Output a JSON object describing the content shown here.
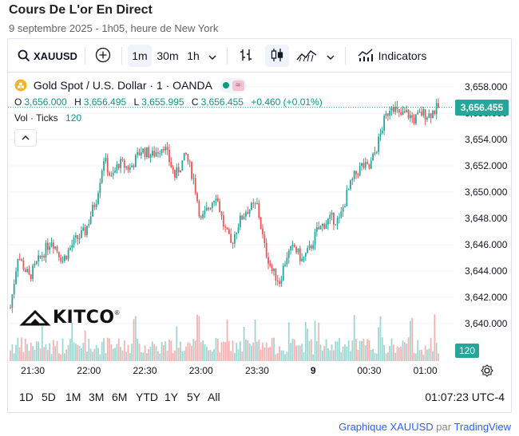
{
  "header": {
    "title": "Cours De L'or En Direct",
    "subtitle": "9 septembre 2025 - 1h05, heure de New York"
  },
  "toolbar": {
    "symbol": "XAUUSD",
    "intervals": [
      "1m",
      "30m",
      "1h"
    ],
    "active_interval": "1m",
    "indicators_label": "Indicators"
  },
  "legend": {
    "instrument": "Gold Spot / U.S. Dollar · 1 · OANDA",
    "ohlc": {
      "o_label": "O",
      "o_value": "3,656.000",
      "h_label": "H",
      "h_value": "3,656.495",
      "l_label": "L",
      "l_value": "3,655.995",
      "c_label": "C",
      "c_value": "3,656.455",
      "change": "+0.460 (+0.01%)"
    },
    "volume_label": "Vol · Ticks",
    "volume_value": "120"
  },
  "logo_text": "KITCO",
  "price_axis": {
    "ticks": [
      "3,658.000",
      "3,656.000",
      "3,654.000",
      "3,652.000",
      "3,650.000",
      "3,648.000",
      "3,646.000",
      "3,644.000",
      "3,642.000",
      "3,640.000"
    ],
    "last_price": "3,656.455",
    "last_volume": "120"
  },
  "time_axis": {
    "ticks": [
      "21:30",
      "22:00",
      "22:30",
      "23:00",
      "23:30",
      "9",
      "00:30",
      "01:00"
    ]
  },
  "range_bar": {
    "ranges": [
      "1D",
      "5D",
      "1M",
      "3M",
      "6M",
      "YTD",
      "1Y",
      "5Y",
      "All"
    ],
    "clock": "01:07:23",
    "timezone": "UTC-4"
  },
  "footer": {
    "link_text": "Graphique XAUUSD",
    "by_text": "par",
    "provider": "TradingView"
  },
  "colors": {
    "up": "#26a69a",
    "down": "#ef5350",
    "last_price_line": "#26a69a"
  },
  "chart_data": {
    "type": "candlestick",
    "title": "Gold Spot / U.S. Dollar · 1 · OANDA",
    "x_range": [
      "21:18",
      "01:07"
    ],
    "ylim": [
      3639.5,
      3658.8
    ],
    "close_path": [
      {
        "t": "21:18",
        "close": 3641.2
      },
      {
        "t": "21:22",
        "close": 3645.2
      },
      {
        "t": "21:28",
        "close": 3643.5
      },
      {
        "t": "21:34",
        "close": 3645.0
      },
      {
        "t": "21:40",
        "close": 3646.4
      },
      {
        "t": "21:46",
        "close": 3644.8
      },
      {
        "t": "21:52",
        "close": 3646.2
      },
      {
        "t": "21:58",
        "close": 3647.0
      },
      {
        "t": "22:04",
        "close": 3649.5
      },
      {
        "t": "22:08",
        "close": 3652.6
      },
      {
        "t": "22:12",
        "close": 3651.0
      },
      {
        "t": "22:16",
        "close": 3652.2
      },
      {
        "t": "22:22",
        "close": 3651.8
      },
      {
        "t": "22:28",
        "close": 3653.2
      },
      {
        "t": "22:34",
        "close": 3652.8
      },
      {
        "t": "22:40",
        "close": 3653.6
      },
      {
        "t": "22:46",
        "close": 3651.2
      },
      {
        "t": "22:52",
        "close": 3652.8
      },
      {
        "t": "22:56",
        "close": 3651.0
      },
      {
        "t": "23:00",
        "close": 3647.8
      },
      {
        "t": "23:04",
        "close": 3648.8
      },
      {
        "t": "23:08",
        "close": 3649.9
      },
      {
        "t": "23:12",
        "close": 3647.5
      },
      {
        "t": "23:16",
        "close": 3646.0
      },
      {
        "t": "23:20",
        "close": 3647.6
      },
      {
        "t": "23:24",
        "close": 3648.6
      },
      {
        "t": "23:30",
        "close": 3649.0
      },
      {
        "t": "23:34",
        "close": 3645.8
      },
      {
        "t": "23:38",
        "close": 3644.0
      },
      {
        "t": "23:42",
        "close": 3643.2
      },
      {
        "t": "23:46",
        "close": 3645.2
      },
      {
        "t": "23:50",
        "close": 3645.8
      },
      {
        "t": "23:54",
        "close": 3644.8
      },
      {
        "t": "23:58",
        "close": 3645.6
      },
      {
        "t": "00:02",
        "close": 3647.0
      },
      {
        "t": "00:06",
        "close": 3647.6
      },
      {
        "t": "00:10",
        "close": 3648.0
      },
      {
        "t": "00:14",
        "close": 3647.8
      },
      {
        "t": "00:18",
        "close": 3649.8
      },
      {
        "t": "00:22",
        "close": 3651.2
      },
      {
        "t": "00:26",
        "close": 3652.0
      },
      {
        "t": "00:30",
        "close": 3651.8
      },
      {
        "t": "00:34",
        "close": 3653.4
      },
      {
        "t": "00:38",
        "close": 3655.4
      },
      {
        "t": "00:42",
        "close": 3656.8
      },
      {
        "t": "00:46",
        "close": 3655.8
      },
      {
        "t": "00:50",
        "close": 3656.0
      },
      {
        "t": "00:54",
        "close": 3655.5
      },
      {
        "t": "00:58",
        "close": 3656.0
      },
      {
        "t": "01:02",
        "close": 3655.9
      },
      {
        "t": "01:07",
        "close": 3656.455
      }
    ],
    "volume_note": "Tick volume bars (up = green, down = red), last value 120"
  }
}
